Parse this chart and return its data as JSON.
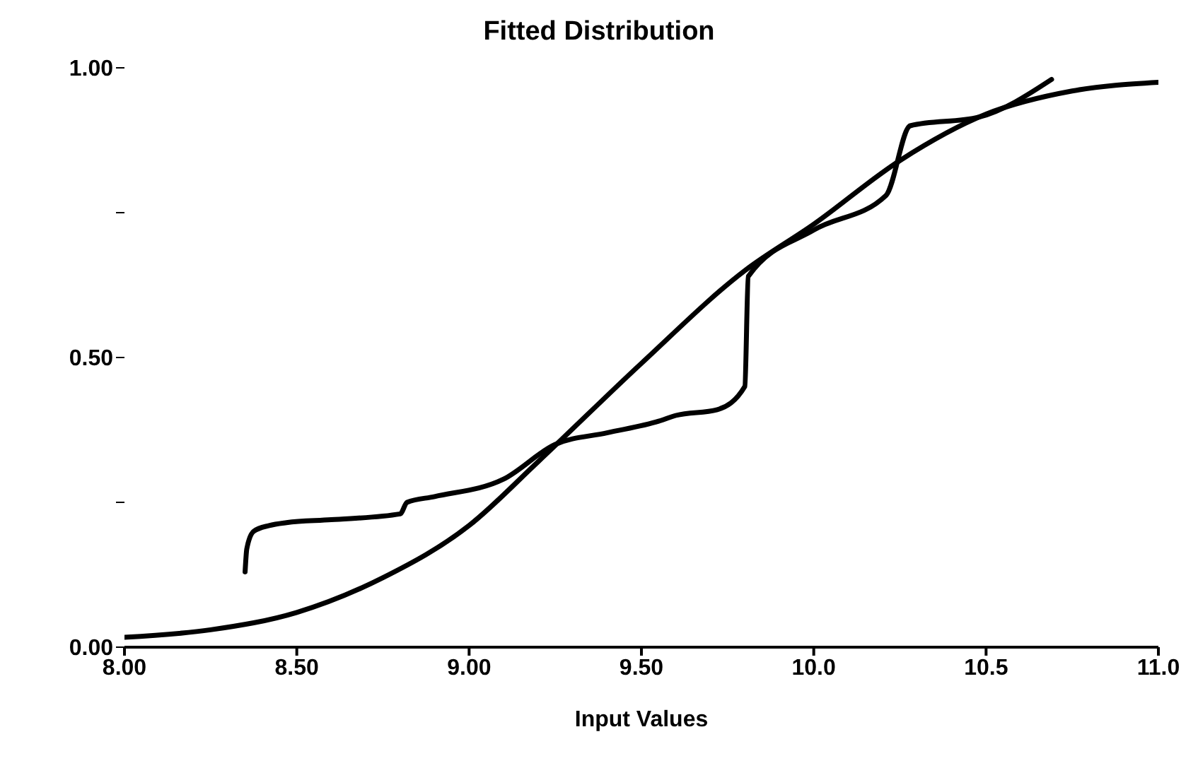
{
  "chart_data": {
    "type": "line",
    "title": "Fitted Distribution",
    "xlabel": "Input Values",
    "xlim": [
      8,
      11
    ],
    "ylim": [
      0,
      1
    ],
    "xticks": [
      {
        "value": 8,
        "label": "8.00"
      },
      {
        "value": 8.5,
        "label": "8.50"
      },
      {
        "value": 9,
        "label": "9.00"
      },
      {
        "value": 9.5,
        "label": "9.50"
      },
      {
        "value": 10,
        "label": "10.0"
      },
      {
        "value": 10.5,
        "label": "10.5"
      },
      {
        "value": 11,
        "label": "11.0"
      }
    ],
    "yticks": [
      {
        "value": 0,
        "label": "0.00"
      },
      {
        "value": 0.25,
        "label": null
      },
      {
        "value": 0.5,
        "label": "0.50"
      },
      {
        "value": 0.75,
        "label": null
      },
      {
        "value": 1,
        "label": "1.00"
      }
    ],
    "grid": false,
    "legend": false,
    "marker": "none",
    "line_style": "solid",
    "series": [
      {
        "color": "#000000",
        "x": [
          8.35,
          8.355,
          8.375,
          8.42,
          8.47,
          8.6,
          8.8,
          8.82,
          8.9,
          9.1,
          9.25,
          9.4,
          9.55,
          9.6,
          9.72,
          9.8,
          9.81,
          10.0,
          10.21,
          10.28,
          10.48,
          10.69
        ],
        "values": [
          0.13,
          0.17,
          0.2,
          0.21,
          0.215,
          0.22,
          0.23,
          0.25,
          0.26,
          0.29,
          0.35,
          0.37,
          0.39,
          0.4,
          0.41,
          0.45,
          0.64,
          0.72,
          0.78,
          0.9,
          0.915,
          0.98
        ]
      },
      {
        "color": "#000000",
        "x": [
          8.0,
          8.25,
          8.5,
          8.75,
          9.0,
          9.2,
          9.5,
          9.8,
          10.0,
          10.25,
          10.5,
          10.75,
          11.0
        ],
        "values": [
          0.017,
          0.03,
          0.06,
          0.12,
          0.21,
          0.32,
          0.49,
          0.65,
          0.73,
          0.84,
          0.92,
          0.96,
          0.975
        ]
      }
    ]
  }
}
